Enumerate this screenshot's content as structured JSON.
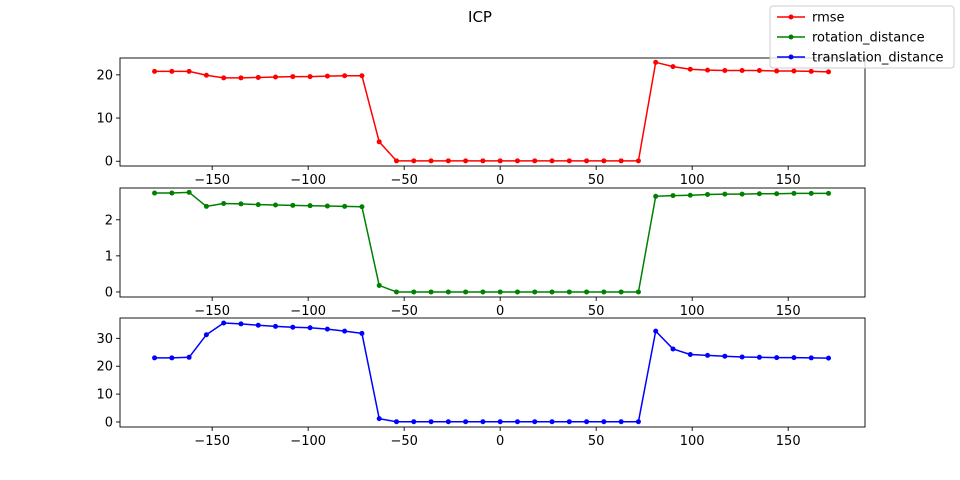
{
  "figure": {
    "title": "ICP"
  },
  "legend": {
    "placement": "top-right",
    "entries": [
      {
        "label": "rmse",
        "color": "#ff0000"
      },
      {
        "label": "rotation_distance",
        "color": "#008000"
      },
      {
        "label": "translation_distance",
        "color": "#0000ff"
      }
    ]
  },
  "chart_data": [
    {
      "type": "line",
      "title": "ICP",
      "xlabel": "",
      "ylabel": "",
      "xlim": [
        -198,
        190
      ],
      "ylim": [
        -1.1,
        23.9
      ],
      "xticks": [
        -150,
        -100,
        -50,
        0,
        50,
        100,
        150
      ],
      "xtick_labels": [
        "−150",
        "−100",
        "−50",
        "0",
        "50",
        "100",
        "150"
      ],
      "yticks": [
        0,
        10,
        20
      ],
      "ytick_labels": [
        "0",
        "10",
        "20"
      ],
      "grid": false,
      "series": [
        {
          "name": "rmse",
          "color": "#ff0000",
          "x": [
            -180,
            -171,
            -162,
            -153,
            -144,
            -135,
            -126,
            -117,
            -108,
            -99,
            -90,
            -81,
            -72,
            -63,
            -54,
            -45,
            -36,
            -27,
            -18,
            -9,
            0,
            9,
            18,
            27,
            36,
            45,
            54,
            63,
            72,
            81,
            90,
            99,
            108,
            117,
            126,
            135,
            144,
            153,
            162,
            171
          ],
          "y": [
            20.8,
            20.8,
            20.8,
            19.9,
            19.3,
            19.3,
            19.4,
            19.5,
            19.6,
            19.6,
            19.7,
            19.8,
            19.8,
            4.5,
            0.1,
            0.1,
            0.1,
            0.1,
            0.1,
            0.1,
            0.1,
            0.1,
            0.1,
            0.1,
            0.1,
            0.1,
            0.1,
            0.1,
            0.1,
            22.9,
            21.9,
            21.3,
            21.1,
            21.0,
            21.0,
            21.0,
            20.9,
            20.9,
            20.8,
            20.7
          ]
        }
      ]
    },
    {
      "type": "line",
      "xlabel": "",
      "ylabel": "",
      "xlim": [
        -198,
        190
      ],
      "ylim": [
        -0.14,
        2.88
      ],
      "xticks": [
        -150,
        -100,
        -50,
        0,
        50,
        100,
        150
      ],
      "xtick_labels": [
        "−150",
        "−100",
        "−50",
        "0",
        "50",
        "100",
        "150"
      ],
      "yticks": [
        0,
        1,
        2
      ],
      "ytick_labels": [
        "0",
        "1",
        "2"
      ],
      "grid": false,
      "series": [
        {
          "name": "rotation_distance",
          "color": "#008000",
          "x": [
            -180,
            -171,
            -162,
            -153,
            -144,
            -135,
            -126,
            -117,
            -108,
            -99,
            -90,
            -81,
            -72,
            -63,
            -54,
            -45,
            -36,
            -27,
            -18,
            -9,
            0,
            9,
            18,
            27,
            36,
            45,
            54,
            63,
            72,
            81,
            90,
            99,
            108,
            117,
            126,
            135,
            144,
            153,
            162,
            171
          ],
          "y": [
            2.74,
            2.74,
            2.76,
            2.37,
            2.45,
            2.44,
            2.42,
            2.41,
            2.4,
            2.39,
            2.38,
            2.37,
            2.36,
            0.18,
            0.0,
            0.0,
            0.0,
            0.0,
            0.0,
            0.0,
            0.0,
            0.0,
            0.0,
            0.0,
            0.0,
            0.0,
            0.0,
            0.0,
            0.0,
            2.65,
            2.67,
            2.68,
            2.7,
            2.71,
            2.71,
            2.72,
            2.72,
            2.73,
            2.73,
            2.73
          ]
        }
      ]
    },
    {
      "type": "line",
      "xlabel": "",
      "ylabel": "",
      "xlim": [
        -198,
        190
      ],
      "ylim": [
        -1.8,
        37.3
      ],
      "xticks": [
        -150,
        -100,
        -50,
        0,
        50,
        100,
        150
      ],
      "xtick_labels": [
        "−150",
        "−100",
        "−50",
        "0",
        "50",
        "100",
        "150"
      ],
      "yticks": [
        0,
        10,
        20,
        30
      ],
      "ytick_labels": [
        "0",
        "10",
        "20",
        "30"
      ],
      "grid": false,
      "series": [
        {
          "name": "translation_distance",
          "color": "#0000ff",
          "x": [
            -180,
            -171,
            -162,
            -153,
            -144,
            -135,
            -126,
            -117,
            -108,
            -99,
            -90,
            -81,
            -72,
            -63,
            -54,
            -45,
            -36,
            -27,
            -18,
            -9,
            0,
            9,
            18,
            27,
            36,
            45,
            54,
            63,
            72,
            81,
            90,
            99,
            108,
            117,
            126,
            135,
            144,
            153,
            162,
            171
          ],
          "y": [
            23.0,
            23.0,
            23.2,
            31.3,
            35.5,
            35.2,
            34.7,
            34.3,
            34.0,
            33.8,
            33.3,
            32.6,
            31.8,
            1.2,
            0.1,
            0.1,
            0.1,
            0.1,
            0.1,
            0.1,
            0.1,
            0.1,
            0.1,
            0.1,
            0.1,
            0.1,
            0.1,
            0.1,
            0.1,
            32.6,
            26.2,
            24.2,
            23.9,
            23.6,
            23.3,
            23.2,
            23.1,
            23.1,
            23.0,
            22.9
          ]
        }
      ]
    }
  ]
}
